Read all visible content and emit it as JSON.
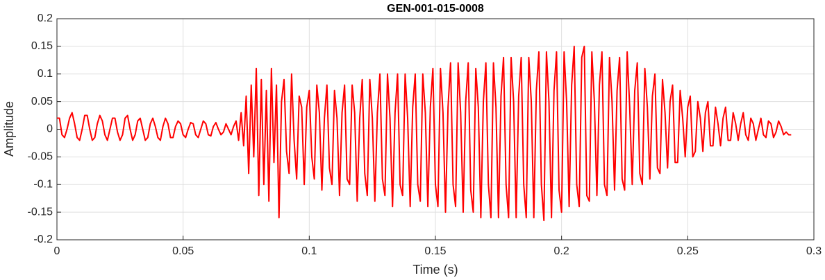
{
  "chart_data": {
    "type": "line",
    "title": "GEN-001-015-0008",
    "xlabel": "Time (s)",
    "ylabel": "Amplitude",
    "xlim": [
      0,
      0.3
    ],
    "xticks": [
      0,
      0.05,
      0.1,
      0.15,
      0.2,
      0.25,
      0.3
    ],
    "ylim": [
      -0.2,
      0.2
    ],
    "yticks": [
      -0.2,
      -0.15,
      -0.1,
      -0.05,
      0,
      0.05,
      0.1,
      0.15,
      0.2
    ],
    "grid": true,
    "series": [
      {
        "color": "#ff0000",
        "x": [
          0,
          0.001,
          0.002,
          0.003,
          0.004,
          0.005,
          0.006,
          0.007,
          0.008,
          0.009,
          0.01,
          0.011,
          0.012,
          0.013,
          0.014,
          0.015,
          0.016,
          0.017,
          0.018,
          0.019,
          0.02,
          0.021,
          0.022,
          0.023,
          0.024,
          0.025,
          0.026,
          0.027,
          0.028,
          0.029,
          0.03,
          0.031,
          0.032,
          0.033,
          0.034,
          0.035,
          0.036,
          0.037,
          0.038,
          0.039,
          0.04,
          0.041,
          0.042,
          0.043,
          0.044,
          0.045,
          0.046,
          0.047,
          0.048,
          0.049,
          0.05,
          0.051,
          0.052,
          0.053,
          0.054,
          0.055,
          0.056,
          0.057,
          0.058,
          0.059,
          0.06,
          0.061,
          0.062,
          0.063,
          0.064,
          0.065,
          0.066,
          0.067,
          0.068,
          0.069,
          0.07,
          0.071,
          0.072,
          0.073,
          0.074,
          0.075,
          0.076,
          0.077,
          0.078,
          0.079,
          0.08,
          0.081,
          0.082,
          0.083,
          0.084,
          0.085,
          0.086,
          0.087,
          0.088,
          0.089,
          0.09,
          0.091,
          0.092,
          0.093,
          0.094,
          0.095,
          0.096,
          0.097,
          0.098,
          0.099,
          0.1,
          0.101,
          0.102,
          0.103,
          0.104,
          0.105,
          0.106,
          0.107,
          0.108,
          0.109,
          0.11,
          0.111,
          0.112,
          0.113,
          0.114,
          0.115,
          0.116,
          0.117,
          0.118,
          0.119,
          0.12,
          0.121,
          0.122,
          0.123,
          0.124,
          0.125,
          0.126,
          0.127,
          0.128,
          0.129,
          0.13,
          0.131,
          0.132,
          0.133,
          0.134,
          0.135,
          0.136,
          0.137,
          0.138,
          0.139,
          0.14,
          0.141,
          0.142,
          0.143,
          0.144,
          0.145,
          0.146,
          0.147,
          0.148,
          0.149,
          0.15,
          0.151,
          0.152,
          0.153,
          0.154,
          0.155,
          0.156,
          0.157,
          0.158,
          0.159,
          0.16,
          0.161,
          0.162,
          0.163,
          0.164,
          0.165,
          0.166,
          0.167,
          0.168,
          0.169,
          0.17,
          0.171,
          0.172,
          0.173,
          0.174,
          0.175,
          0.176,
          0.177,
          0.178,
          0.179,
          0.18,
          0.181,
          0.182,
          0.183,
          0.184,
          0.185,
          0.186,
          0.187,
          0.188,
          0.189,
          0.19,
          0.191,
          0.192,
          0.193,
          0.194,
          0.195,
          0.196,
          0.197,
          0.198,
          0.199,
          0.2,
          0.201,
          0.202,
          0.203,
          0.204,
          0.205,
          0.206,
          0.207,
          0.208,
          0.209,
          0.21,
          0.211,
          0.212,
          0.213,
          0.214,
          0.215,
          0.216,
          0.217,
          0.218,
          0.219,
          0.22,
          0.221,
          0.222,
          0.223,
          0.224,
          0.225,
          0.226,
          0.227,
          0.228,
          0.229,
          0.23,
          0.231,
          0.232,
          0.233,
          0.234,
          0.235,
          0.236,
          0.237,
          0.238,
          0.239,
          0.24,
          0.241,
          0.242,
          0.243,
          0.244,
          0.245,
          0.246,
          0.247,
          0.248,
          0.249,
          0.25,
          0.251,
          0.252,
          0.253,
          0.254,
          0.255,
          0.256,
          0.257,
          0.258,
          0.259,
          0.26,
          0.261,
          0.262,
          0.263,
          0.264,
          0.265,
          0.266,
          0.267,
          0.268,
          0.269,
          0.27,
          0.271,
          0.272,
          0.273,
          0.274,
          0.275,
          0.276,
          0.277,
          0.278,
          0.279,
          0.28,
          0.281,
          0.282,
          0.283,
          0.284,
          0.285,
          0.286,
          0.287,
          0.288,
          0.289,
          0.29,
          0.291
        ],
        "values": [
          0.02,
          0.02,
          -0.01,
          -0.015,
          0.0,
          0.02,
          0.03,
          0.01,
          -0.015,
          -0.02,
          0.0,
          0.025,
          0.025,
          0.0,
          -0.02,
          -0.015,
          0.01,
          0.025,
          0.015,
          -0.01,
          -0.02,
          0.0,
          0.02,
          0.02,
          -0.005,
          -0.02,
          -0.01,
          0.02,
          0.025,
          0.0,
          -0.02,
          -0.01,
          0.015,
          0.02,
          0.0,
          -0.02,
          -0.015,
          0.01,
          0.02,
          0.005,
          -0.015,
          -0.02,
          0.005,
          0.02,
          0.01,
          -0.015,
          -0.015,
          0.005,
          0.015,
          0.01,
          -0.01,
          -0.015,
          0.0,
          0.012,
          0.01,
          -0.01,
          -0.015,
          0.0,
          0.015,
          0.01,
          -0.01,
          -0.012,
          0.005,
          0.012,
          0.0,
          -0.01,
          -0.005,
          0.01,
          0.0,
          -0.01,
          0.005,
          0.015,
          -0.02,
          0.03,
          -0.03,
          0.06,
          -0.08,
          0.08,
          -0.05,
          0.11,
          -0.12,
          0.09,
          -0.1,
          0.07,
          -0.13,
          0.11,
          -0.06,
          0.08,
          -0.16,
          0.05,
          0.09,
          -0.04,
          -0.08,
          0.1,
          -0.02,
          -0.09,
          0.06,
          0.04,
          -0.1,
          0.04,
          0.07,
          -0.05,
          -0.09,
          0.08,
          0.03,
          -0.11,
          0.02,
          0.08,
          -0.07,
          -0.1,
          0.07,
          0.02,
          -0.12,
          0.03,
          0.08,
          -0.09,
          -0.1,
          0.08,
          0.03,
          -0.13,
          0.02,
          0.09,
          -0.08,
          -0.12,
          0.09,
          0.02,
          -0.13,
          0.03,
          0.1,
          -0.09,
          -0.12,
          0.1,
          0.02,
          -0.14,
          0.03,
          0.1,
          -0.1,
          -0.12,
          0.1,
          0.02,
          -0.14,
          0.04,
          0.1,
          -0.1,
          -0.13,
          0.1,
          0.03,
          -0.14,
          0.04,
          0.11,
          -0.1,
          -0.14,
          0.11,
          0.03,
          -0.15,
          0.04,
          0.12,
          -0.1,
          -0.14,
          0.12,
          0.03,
          -0.15,
          0.05,
          0.12,
          -0.11,
          -0.15,
          0.11,
          0.04,
          -0.16,
          0.05,
          0.12,
          -0.1,
          -0.16,
          0.12,
          0.04,
          -0.16,
          0.06,
          0.13,
          -0.1,
          -0.16,
          0.13,
          0.05,
          -0.16,
          0.06,
          0.13,
          -0.1,
          -0.16,
          0.13,
          0.05,
          -0.16,
          0.07,
          0.14,
          -0.1,
          -0.165,
          0.14,
          0.05,
          -0.16,
          0.07,
          0.14,
          -0.11,
          -0.15,
          0.14,
          0.05,
          -0.14,
          0.08,
          0.15,
          -0.1,
          -0.14,
          0.13,
          0.15,
          -0.12,
          -0.13,
          0.14,
          0.05,
          -0.12,
          0.08,
          0.14,
          -0.1,
          -0.12,
          0.13,
          0.05,
          -0.11,
          0.07,
          0.13,
          -0.09,
          -0.11,
          0.14,
          0.04,
          -0.1,
          0.07,
          0.12,
          -0.08,
          -0.1,
          0.11,
          0.04,
          -0.09,
          0.06,
          0.1,
          -0.07,
          -0.08,
          0.09,
          0.03,
          -0.07,
          0.05,
          0.08,
          -0.06,
          -0.06,
          0.07,
          0.02,
          -0.05,
          0.04,
          0.06,
          -0.05,
          -0.04,
          0.05,
          0.02,
          -0.04,
          0.03,
          0.05,
          -0.03,
          -0.03,
          0.04,
          0.01,
          -0.03,
          0.02,
          0.04,
          -0.02,
          -0.02,
          0.03,
          0.01,
          -0.02,
          0.01,
          0.03,
          -0.01,
          -0.02,
          0.02,
          0.01,
          -0.02,
          0.0,
          0.02,
          -0.01,
          -0.015,
          0.015,
          0.01,
          -0.015,
          -0.005,
          0.015,
          0.005,
          -0.01,
          -0.005,
          -0.01,
          -0.01
        ]
      }
    ]
  }
}
